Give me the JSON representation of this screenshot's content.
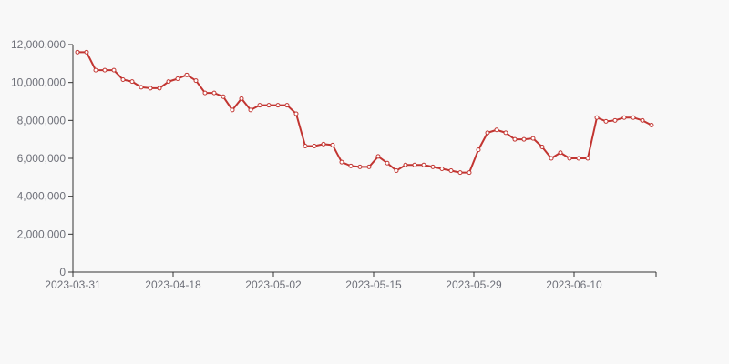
{
  "chart_data": {
    "type": "line",
    "x_tick_labels": [
      "2023-03-31",
      "2023-04-18",
      "2023-05-02",
      "2023-05-15",
      "2023-05-29",
      "2023-06-10"
    ],
    "y_tick_labels": [
      "0",
      "2,000,000",
      "4,000,000",
      "6,000,000",
      "8,000,000",
      "10,000,000",
      "12,000,000"
    ],
    "ylim": [
      0,
      12000000
    ],
    "grid": false,
    "colors": {
      "line": "#c23531",
      "axis": "#333333",
      "text": "#6e7079",
      "background": "#f8f8f8"
    },
    "x": [
      "2023-03-31",
      "2023-04-03",
      "2023-04-04",
      "2023-04-06",
      "2023-04-07",
      "2023-04-10",
      "2023-04-11",
      "2023-04-12",
      "2023-04-13",
      "2023-04-14",
      "2023-04-17",
      "2023-04-18",
      "2023-04-19",
      "2023-04-20",
      "2023-04-21",
      "2023-04-24",
      "2023-04-25",
      "2023-04-26",
      "2023-04-27",
      "2023-04-28",
      "2023-05-02",
      "2023-05-03",
      "2023-05-04",
      "2023-05-05",
      "2023-05-08",
      "2023-05-09",
      "2023-05-10",
      "2023-05-11",
      "2023-05-12",
      "2023-05-15",
      "2023-05-16",
      "2023-05-17",
      "2023-05-18",
      "2023-05-19",
      "2023-05-22",
      "2023-05-23",
      "2023-05-24",
      "2023-05-25",
      "2023-05-26",
      "2023-05-29",
      "2023-05-30",
      "2023-05-31",
      "2023-06-01",
      "2023-06-02",
      "2023-06-05",
      "2023-06-06",
      "2023-06-07",
      "2023-06-08",
      "2023-06-09",
      "2023-06-10",
      "2023-06-12",
      "2023-06-13",
      "2023-06-14",
      "2023-06-15",
      "2023-06-16",
      "2023-06-19",
      "2023-06-20",
      "2023-06-21",
      "2023-06-22",
      "2023-06-23",
      "2023-06-26",
      "2023-06-27",
      "2023-06-28",
      "2023-06-29"
    ],
    "values": [
      11600000,
      11600000,
      10650000,
      10650000,
      10650000,
      10150000,
      10050000,
      9750000,
      9700000,
      9700000,
      10050000,
      10200000,
      10400000,
      10100000,
      9450000,
      9450000,
      9250000,
      8550000,
      9150000,
      8550000,
      8800000,
      8800000,
      8800000,
      8800000,
      8350000,
      6650000,
      6650000,
      6750000,
      6700000,
      5800000,
      5600000,
      5550000,
      5550000,
      6100000,
      5750000,
      5350000,
      5650000,
      5650000,
      5650000,
      5550000,
      5450000,
      5350000,
      5250000,
      5250000,
      6450000,
      7350000,
      7500000,
      7350000,
      7000000,
      7000000,
      7050000,
      6600000,
      6000000,
      6300000,
      6000000,
      6000000,
      6000000,
      8150000,
      7950000,
      8000000,
      8150000,
      8150000,
      8000000,
      7750000
    ]
  }
}
